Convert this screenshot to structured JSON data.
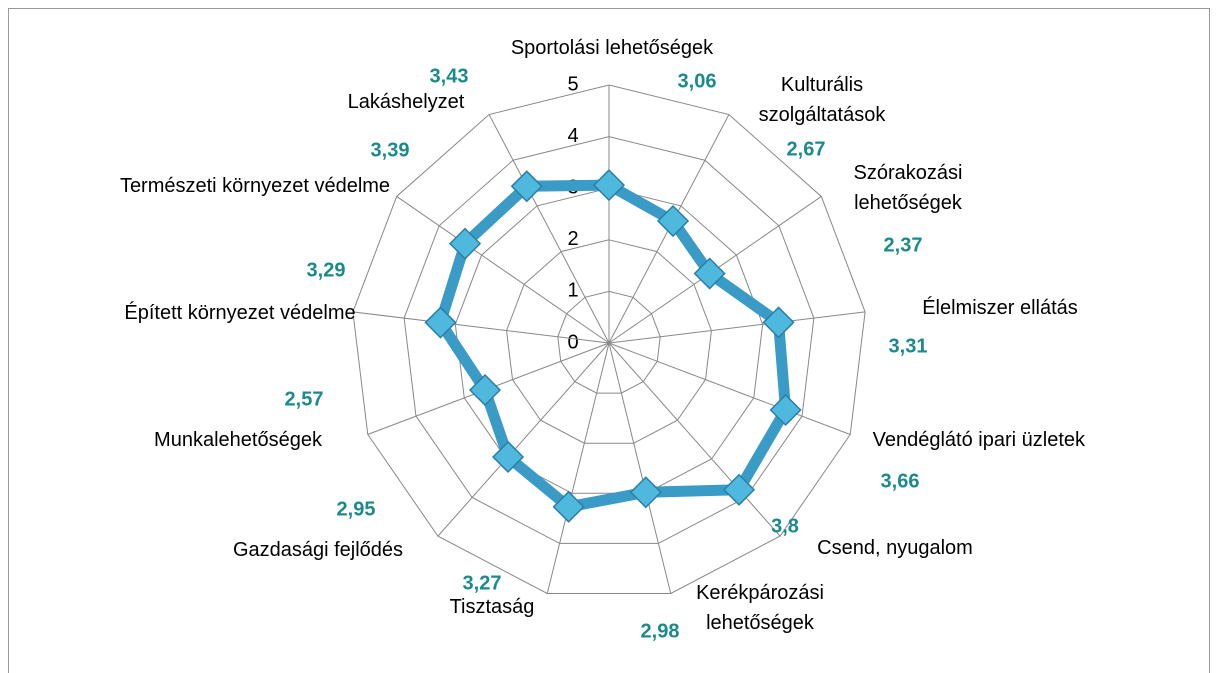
{
  "chart_data": {
    "type": "radar",
    "categories": [
      "Sportolási lehetőségek",
      "Kulturális szolgáltatások",
      "Szórakozási lehetőségek",
      "Élelmiszer ellátás",
      "Vendéglátó ipari üzletek",
      "Csend, nyugalom",
      "Kerékpározási lehetőségek",
      "Tisztaság",
      "Gazdasági fejlődés",
      "Munkalehetőségek",
      "Épített környezet védelme",
      "Természeti környezet védelme",
      "Lakáshelyzet"
    ],
    "values": [
      3.06,
      2.67,
      2.37,
      3.31,
      3.66,
      3.8,
      2.98,
      3.27,
      2.95,
      2.57,
      3.29,
      3.39,
      3.43
    ],
    "value_labels": [
      "3,06",
      "2,67",
      "2,37",
      "3,31",
      "3,66",
      "3,8",
      "2,98",
      "3,27",
      "2,95",
      "2,57",
      "3,29",
      "3,39",
      "3,43"
    ],
    "color": "#3a9cc6",
    "label_color": "#1b8a8c",
    "ylim": [
      0,
      5
    ],
    "yticks": [
      0,
      1,
      2,
      3,
      4,
      5
    ],
    "grid": true
  }
}
